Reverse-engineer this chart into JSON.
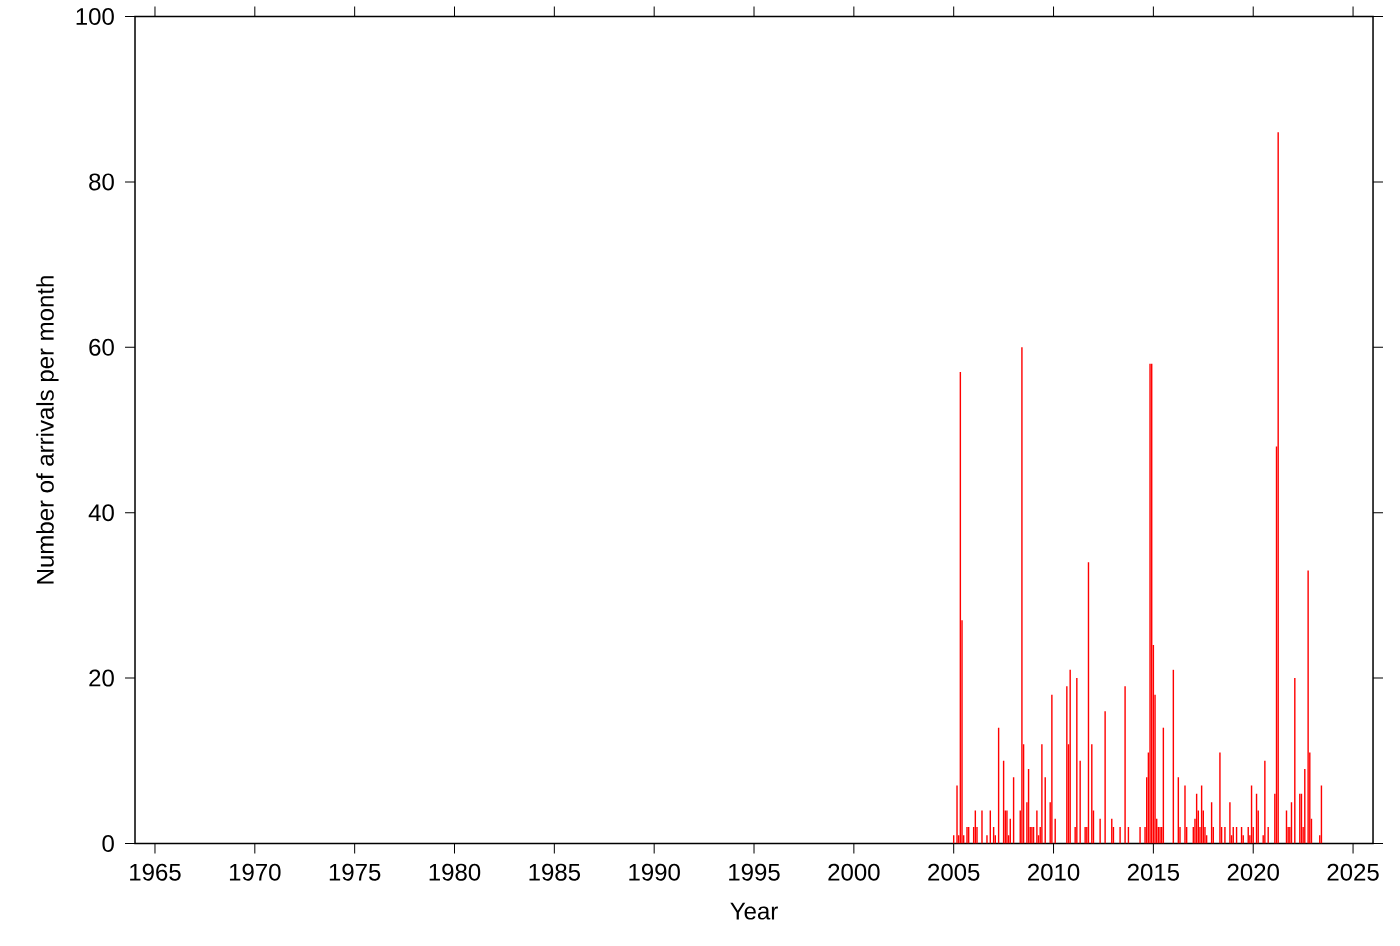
{
  "chart_data": {
    "type": "bar",
    "xlabel": "Year",
    "ylabel": "Number of arrivals per month",
    "color": "#ff0000",
    "x": [
      "2005-01",
      "2005-03",
      "2005-04",
      "2005-05",
      "2005-06",
      "2005-07",
      "2005-09",
      "2005-10",
      "2006-01",
      "2006-02",
      "2006-03",
      "2006-06",
      "2006-09",
      "2006-11",
      "2007-01",
      "2007-02",
      "2007-04",
      "2007-07",
      "2007-08",
      "2007-09",
      "2007-10",
      "2007-11",
      "2008-01",
      "2008-05",
      "2008-06",
      "2008-07",
      "2008-09",
      "2008-10",
      "2008-11",
      "2008-12",
      "2009-01",
      "2009-03",
      "2009-04",
      "2009-05",
      "2009-06",
      "2009-08",
      "2009-11",
      "2009-12",
      "2010-02",
      "2010-09",
      "2010-10",
      "2010-11",
      "2011-02",
      "2011-03",
      "2011-05",
      "2011-08",
      "2011-09",
      "2011-10",
      "2011-12",
      "2012-01",
      "2012-05",
      "2012-08",
      "2012-12",
      "2013-01",
      "2013-05",
      "2013-08",
      "2013-10",
      "2014-05",
      "2014-08",
      "2014-09",
      "2014-10",
      "2014-11",
      "2014-12",
      "2015-01",
      "2015-02",
      "2015-03",
      "2015-04",
      "2015-05",
      "2015-06",
      "2015-07",
      "2016-01",
      "2016-04",
      "2016-05",
      "2016-08",
      "2016-09",
      "2017-01",
      "2017-02",
      "2017-03",
      "2017-04",
      "2017-05",
      "2017-06",
      "2017-07",
      "2017-08",
      "2017-09",
      "2017-12",
      "2018-01",
      "2018-05",
      "2018-06",
      "2018-08",
      "2018-11",
      "2018-12",
      "2019-01",
      "2019-03",
      "2019-06",
      "2019-07",
      "2019-10",
      "2019-11",
      "2019-12",
      "2020-01",
      "2020-03",
      "2020-04",
      "2020-07",
      "2020-08",
      "2020-10",
      "2021-02",
      "2021-03",
      "2021-04",
      "2021-09",
      "2021-10",
      "2021-11",
      "2021-12",
      "2022-02",
      "2022-05",
      "2022-06",
      "2022-07",
      "2022-08",
      "2022-10",
      "2022-11",
      "2022-12",
      "2023-05",
      "2023-06"
    ],
    "values": [
      1,
      7,
      1,
      57,
      27,
      1,
      2,
      2,
      2,
      4,
      2,
      4,
      1,
      4,
      2,
      1,
      14,
      10,
      4,
      4,
      1,
      3,
      8,
      4,
      60,
      12,
      5,
      9,
      2,
      2,
      2,
      4,
      1,
      2,
      12,
      8,
      5,
      18,
      3,
      19,
      12,
      21,
      2,
      20,
      10,
      2,
      2,
      34,
      12,
      4,
      3,
      16,
      3,
      2,
      2,
      19,
      2,
      2,
      2,
      8,
      11,
      58,
      58,
      24,
      18,
      3,
      2,
      2,
      2,
      14,
      21,
      8,
      2,
      7,
      2,
      2,
      3,
      6,
      4,
      2,
      7,
      4,
      2,
      1,
      5,
      2,
      11,
      2,
      2,
      5,
      1,
      2,
      2,
      2,
      1,
      2,
      1,
      7,
      2,
      6,
      4,
      1,
      10,
      2,
      6,
      48,
      86,
      4,
      2,
      2,
      5,
      20,
      6,
      6,
      2,
      9,
      33,
      11,
      3,
      1,
      7
    ],
    "xlim": [
      "1964",
      "2026"
    ],
    "xticks": [
      "1965",
      "1970",
      "1975",
      "1980",
      "1985",
      "1990",
      "1995",
      "2000",
      "2005",
      "2010",
      "2015",
      "2020",
      "2025"
    ],
    "ylim": [
      0,
      100
    ],
    "yticks": [
      0,
      20,
      40,
      60,
      80,
      100
    ]
  }
}
